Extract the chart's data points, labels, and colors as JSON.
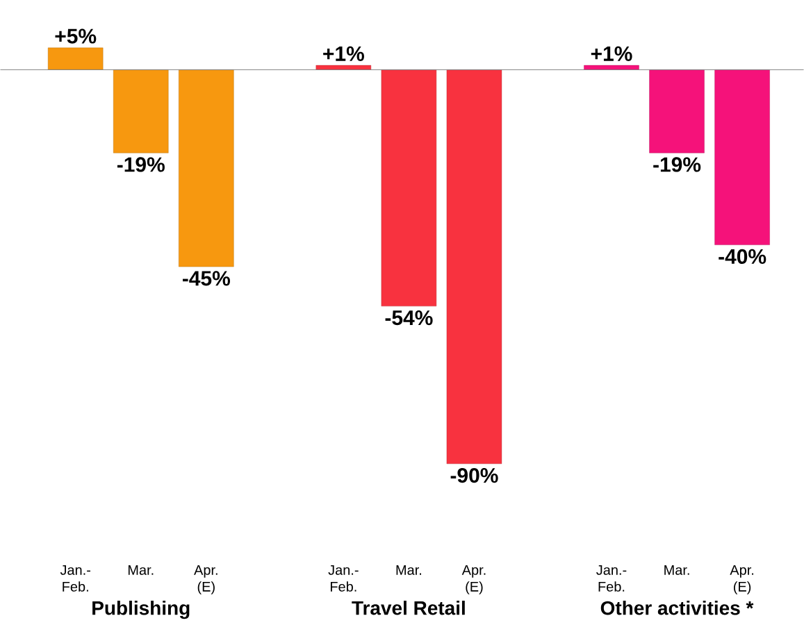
{
  "chart_data": {
    "type": "bar",
    "categories": [
      "Jan.- Feb.",
      "Mar.",
      "Apr. (E)",
      "Jan.- Feb.",
      "Mar.",
      "Apr. (E)",
      "Jan.- Feb.",
      "Mar.",
      "Apr. (E)"
    ],
    "values": [
      5,
      -19,
      -45,
      1,
      -54,
      -90,
      1,
      -19,
      -40
    ],
    "value_labels": [
      "+5%",
      "-19%",
      "-45%",
      "+1%",
      "-54%",
      "-90%",
      "+1%",
      "-19%",
      "-40%"
    ],
    "colors": [
      "#f7980f",
      "#f7980f",
      "#f7980f",
      "#f8323f",
      "#f8323f",
      "#f8323f",
      "#f5127a",
      "#f5127a",
      "#f5127a"
    ],
    "annotations": [
      "Publishing",
      "Travel Retail",
      "Other activities *"
    ]
  }
}
